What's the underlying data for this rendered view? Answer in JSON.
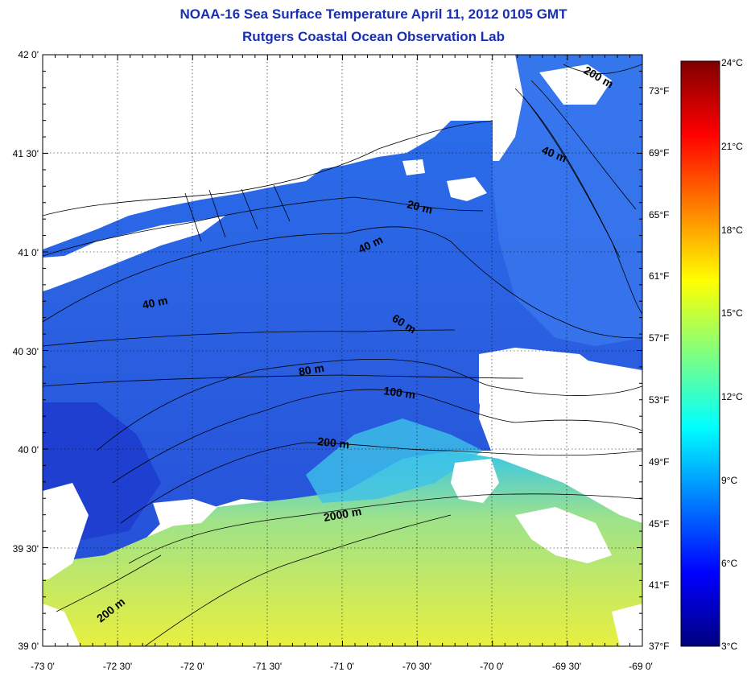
{
  "header": {
    "title": "NOAA-16 Sea Surface Temperature April 11, 2012 0105 GMT",
    "subtitle": "Rutgers Coastal Ocean Observation Lab"
  },
  "map": {
    "lon_labels": [
      "-73 0'",
      "-72 30'",
      "-72 0'",
      "-71 30'",
      "-71 0'",
      "-70 30'",
      "-70 0'",
      "-69 30'",
      "-69 0'"
    ],
    "lat_labels": [
      "42 0'",
      "41 30'",
      "41 0'",
      "40 30'",
      "40 0'",
      "39 30'",
      "39 0'"
    ],
    "contour_labels": [
      "20 m",
      "40 m",
      "40 m",
      "40 m",
      "60 m",
      "80 m",
      "100 m",
      "200 m",
      "200 m",
      "2000 m",
      "200 m"
    ],
    "cloud_color": "#ffffff",
    "land_color": "#ffffff"
  },
  "fahrenheit_scale": [
    "73°F",
    "69°F",
    "65°F",
    "61°F",
    "57°F",
    "53°F",
    "49°F",
    "45°F",
    "41°F",
    "37°F"
  ],
  "colorbar": {
    "labels": [
      "24°C",
      "21°C",
      "18°C",
      "15°C",
      "12°C",
      "9°C",
      "6°C",
      "3°C"
    ],
    "min_c": 3,
    "max_c": 24,
    "colors": [
      "#00007f",
      "#0000ff",
      "#007fff",
      "#00ffff",
      "#7fff7f",
      "#ffff00",
      "#ff7f00",
      "#ff0000",
      "#7f0000"
    ]
  }
}
